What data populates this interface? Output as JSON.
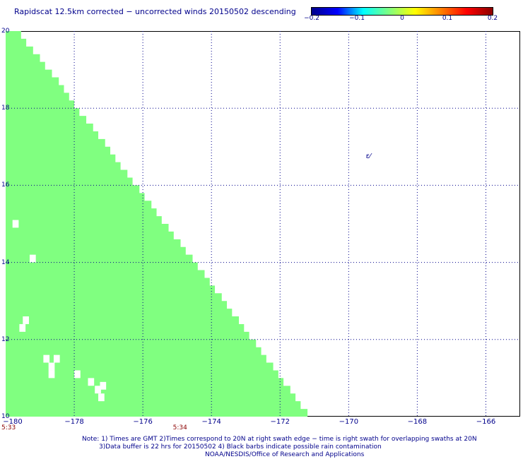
{
  "title": "Rapidscat 12.5km corrected − uncorrected winds 20150502 descending",
  "colorbar": {
    "ticks": [
      "−0.2",
      "−0.1",
      "0",
      "0.1",
      "0.2"
    ],
    "colors": [
      "#00008b",
      "#0000ff",
      "#00ffff",
      "#80ff80",
      "#ffff00",
      "#ff8000",
      "#ff0000",
      "#8b0000"
    ]
  },
  "map": {
    "lon_range": [
      -180,
      -165
    ],
    "lat_range": [
      10,
      20
    ],
    "x_ticks": [
      "−180",
      "−178",
      "−176",
      "−174",
      "−172",
      "−170",
      "−168",
      "−166"
    ],
    "y_ticks": [
      "20",
      "18",
      "16",
      "14",
      "12",
      "10"
    ],
    "grid": "dotted",
    "swath_color": "#80ff80",
    "swath_right_edge": [
      [
        20.0,
        -179.55
      ],
      [
        19.8,
        -179.4
      ],
      [
        19.6,
        -179.2
      ],
      [
        19.4,
        -179.0
      ],
      [
        19.2,
        -178.85
      ],
      [
        19.0,
        -178.65
      ],
      [
        18.8,
        -178.45
      ],
      [
        18.6,
        -178.3
      ],
      [
        18.4,
        -178.15
      ],
      [
        18.2,
        -178.0
      ],
      [
        18.0,
        -177.85
      ],
      [
        17.8,
        -177.65
      ],
      [
        17.6,
        -177.45
      ],
      [
        17.4,
        -177.3
      ],
      [
        17.2,
        -177.1
      ],
      [
        17.0,
        -176.95
      ],
      [
        16.8,
        -176.8
      ],
      [
        16.6,
        -176.65
      ],
      [
        16.4,
        -176.45
      ],
      [
        16.2,
        -176.3
      ],
      [
        16.0,
        -176.1
      ],
      [
        15.8,
        -175.95
      ],
      [
        15.6,
        -175.75
      ],
      [
        15.4,
        -175.6
      ],
      [
        15.2,
        -175.45
      ],
      [
        15.0,
        -175.25
      ],
      [
        14.8,
        -175.1
      ],
      [
        14.6,
        -174.9
      ],
      [
        14.4,
        -174.75
      ],
      [
        14.2,
        -174.55
      ],
      [
        14.0,
        -174.4
      ],
      [
        13.8,
        -174.2
      ],
      [
        13.6,
        -174.05
      ],
      [
        13.4,
        -173.9
      ],
      [
        13.2,
        -173.7
      ],
      [
        13.0,
        -173.55
      ],
      [
        12.8,
        -173.4
      ],
      [
        12.6,
        -173.2
      ],
      [
        12.4,
        -173.05
      ],
      [
        12.2,
        -172.9
      ],
      [
        12.0,
        -172.7
      ],
      [
        11.8,
        -172.55
      ],
      [
        11.6,
        -172.4
      ],
      [
        11.4,
        -172.2
      ],
      [
        11.2,
        -172.05
      ],
      [
        11.0,
        -171.9
      ],
      [
        10.8,
        -171.7
      ],
      [
        10.6,
        -171.55
      ],
      [
        10.4,
        -171.4
      ],
      [
        10.2,
        -171.2
      ]
    ],
    "gaps": [
      [
        15.1,
        -179.8
      ],
      [
        14.2,
        -179.3
      ],
      [
        12.6,
        -179.5
      ],
      [
        12.4,
        -179.6
      ],
      [
        11.6,
        -178.9
      ],
      [
        11.6,
        -178.6
      ],
      [
        11.4,
        -178.75
      ],
      [
        11.2,
        -178.75
      ],
      [
        11.2,
        -178.0
      ],
      [
        11.0,
        -177.6
      ],
      [
        10.8,
        -177.4
      ],
      [
        10.6,
        -177.3
      ],
      [
        10.9,
        -177.25
      ]
    ],
    "barb_glyph": "ε⁄",
    "barb_position": [
      16.7,
      -169.5
    ]
  },
  "time_labels": [
    {
      "text": "5:33",
      "lon": -180
    },
    {
      "text": "5:34",
      "lon": -175
    }
  ],
  "notes": {
    "line1": "Note: 1) Times are GMT 2)Times correspond to 20N at right swath edge − time is right swath for overlapping swaths at 20N",
    "line2": "3)Data buffer is 22 hrs for 20150502 4) Black barbs indicate possible rain contamination",
    "line3": "NOAA/NESDIS/Office of Research and Applications"
  }
}
